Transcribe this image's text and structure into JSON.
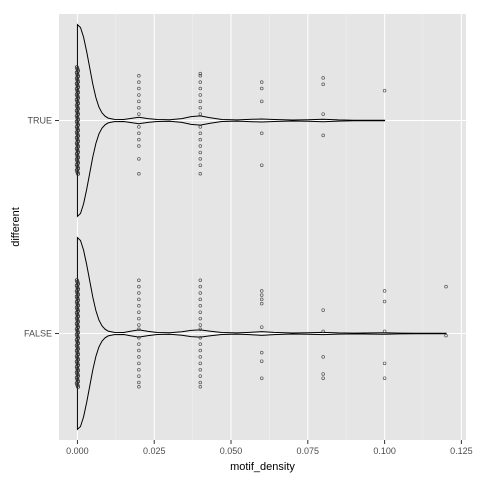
{
  "chart_data": {
    "type": "violin",
    "xlabel": "motif_density",
    "ylabel": "different",
    "xlim": [
      -0.006,
      0.1265
    ],
    "x_ticks": [
      0.0,
      0.025,
      0.05,
      0.075,
      0.1,
      0.125
    ],
    "x_tick_labels": [
      "0.000",
      "0.025",
      "0.050",
      "0.075",
      "0.100",
      "0.125"
    ],
    "categories": [
      "TRUE",
      "FALSE"
    ],
    "grid": true,
    "background": "#e5e5e5",
    "gridline_color": "#ffffff",
    "violin_color": "#000000",
    "point_color": "#333333",
    "series": [
      {
        "category": "TRUE",
        "density": [
          {
            "x": 0.0,
            "w": 1.0
          },
          {
            "x": 0.001,
            "w": 0.97
          },
          {
            "x": 0.002,
            "w": 0.87
          },
          {
            "x": 0.003,
            "w": 0.72
          },
          {
            "x": 0.004,
            "w": 0.55
          },
          {
            "x": 0.005,
            "w": 0.38
          },
          {
            "x": 0.006,
            "w": 0.24
          },
          {
            "x": 0.007,
            "w": 0.14
          },
          {
            "x": 0.008,
            "w": 0.08
          },
          {
            "x": 0.009,
            "w": 0.045
          },
          {
            "x": 0.01,
            "w": 0.025
          },
          {
            "x": 0.012,
            "w": 0.012
          },
          {
            "x": 0.015,
            "w": 0.01
          },
          {
            "x": 0.017,
            "w": 0.02
          },
          {
            "x": 0.02,
            "w": 0.034
          },
          {
            "x": 0.023,
            "w": 0.02
          },
          {
            "x": 0.026,
            "w": 0.01
          },
          {
            "x": 0.03,
            "w": 0.008
          },
          {
            "x": 0.034,
            "w": 0.02
          },
          {
            "x": 0.037,
            "w": 0.04
          },
          {
            "x": 0.04,
            "w": 0.048
          },
          {
            "x": 0.043,
            "w": 0.03
          },
          {
            "x": 0.047,
            "w": 0.01
          },
          {
            "x": 0.052,
            "w": 0.006
          },
          {
            "x": 0.056,
            "w": 0.012
          },
          {
            "x": 0.06,
            "w": 0.016
          },
          {
            "x": 0.064,
            "w": 0.01
          },
          {
            "x": 0.07,
            "w": 0.005
          },
          {
            "x": 0.075,
            "w": 0.008
          },
          {
            "x": 0.08,
            "w": 0.013
          },
          {
            "x": 0.085,
            "w": 0.006
          },
          {
            "x": 0.09,
            "w": 0.003
          },
          {
            "x": 0.1,
            "w": 0.003
          }
        ],
        "points": [
          {
            "x": 0.02,
            "offsets": [
              0.21,
              0.18,
              0.15,
              0.12,
              0.09,
              0.06,
              0.03,
              -0.03,
              -0.06,
              -0.09,
              -0.12,
              -0.18,
              -0.25
            ]
          },
          {
            "x": 0.04,
            "offsets": [
              0.22,
              0.21,
              0.18,
              0.15,
              0.12,
              0.09,
              0.06,
              0.03,
              -0.03,
              -0.06,
              -0.09,
              -0.12,
              -0.15,
              -0.18,
              -0.21,
              -0.25
            ]
          },
          {
            "x": 0.06,
            "offsets": [
              0.18,
              0.15,
              0.09,
              -0.06,
              -0.21
            ]
          },
          {
            "x": 0.08,
            "offsets": [
              0.2,
              0.17,
              0.03,
              -0.07
            ]
          },
          {
            "x": 0.1,
            "offsets": [
              0.14
            ]
          }
        ]
      },
      {
        "category": "FALSE",
        "density": [
          {
            "x": 0.0,
            "w": 1.0
          },
          {
            "x": 0.001,
            "w": 0.97
          },
          {
            "x": 0.002,
            "w": 0.87
          },
          {
            "x": 0.003,
            "w": 0.72
          },
          {
            "x": 0.004,
            "w": 0.55
          },
          {
            "x": 0.005,
            "w": 0.38
          },
          {
            "x": 0.006,
            "w": 0.24
          },
          {
            "x": 0.007,
            "w": 0.14
          },
          {
            "x": 0.008,
            "w": 0.08
          },
          {
            "x": 0.009,
            "w": 0.045
          },
          {
            "x": 0.01,
            "w": 0.025
          },
          {
            "x": 0.012,
            "w": 0.012
          },
          {
            "x": 0.015,
            "w": 0.01
          },
          {
            "x": 0.017,
            "w": 0.022
          },
          {
            "x": 0.02,
            "w": 0.038
          },
          {
            "x": 0.023,
            "w": 0.022
          },
          {
            "x": 0.026,
            "w": 0.01
          },
          {
            "x": 0.03,
            "w": 0.008
          },
          {
            "x": 0.034,
            "w": 0.018
          },
          {
            "x": 0.037,
            "w": 0.032
          },
          {
            "x": 0.04,
            "w": 0.038
          },
          {
            "x": 0.043,
            "w": 0.025
          },
          {
            "x": 0.047,
            "w": 0.01
          },
          {
            "x": 0.052,
            "w": 0.006
          },
          {
            "x": 0.056,
            "w": 0.012
          },
          {
            "x": 0.06,
            "w": 0.02
          },
          {
            "x": 0.064,
            "w": 0.012
          },
          {
            "x": 0.07,
            "w": 0.005
          },
          {
            "x": 0.075,
            "w": 0.008
          },
          {
            "x": 0.08,
            "w": 0.012
          },
          {
            "x": 0.085,
            "w": 0.006
          },
          {
            "x": 0.09,
            "w": 0.004
          },
          {
            "x": 0.1,
            "w": 0.008
          },
          {
            "x": 0.105,
            "w": 0.004
          },
          {
            "x": 0.11,
            "w": 0.002
          },
          {
            "x": 0.12,
            "w": 0.003
          }
        ],
        "points": [
          {
            "x": 0.02,
            "offsets": [
              0.25,
              0.22,
              0.19,
              0.16,
              0.13,
              0.1,
              0.07,
              0.04,
              0.02,
              -0.02,
              -0.05,
              -0.08,
              -0.11,
              -0.14,
              -0.17,
              -0.2,
              -0.23,
              -0.25
            ]
          },
          {
            "x": 0.04,
            "offsets": [
              0.25,
              0.22,
              0.19,
              0.16,
              0.13,
              0.1,
              0.07,
              0.04,
              0.02,
              -0.02,
              -0.05,
              -0.08,
              -0.11,
              -0.14,
              -0.17,
              -0.2,
              -0.23,
              -0.25
            ]
          },
          {
            "x": 0.06,
            "offsets": [
              0.2,
              0.18,
              0.16,
              0.14,
              0.03,
              -0.09,
              -0.13,
              -0.21
            ]
          },
          {
            "x": 0.08,
            "offsets": [
              0.11,
              0.01,
              -0.11,
              -0.19,
              -0.21
            ]
          },
          {
            "x": 0.1,
            "offsets": [
              0.2,
              0.15,
              0.01,
              -0.14,
              -0.21
            ]
          },
          {
            "x": 0.12,
            "offsets": [
              0.22,
              -0.01
            ]
          }
        ]
      }
    ]
  }
}
